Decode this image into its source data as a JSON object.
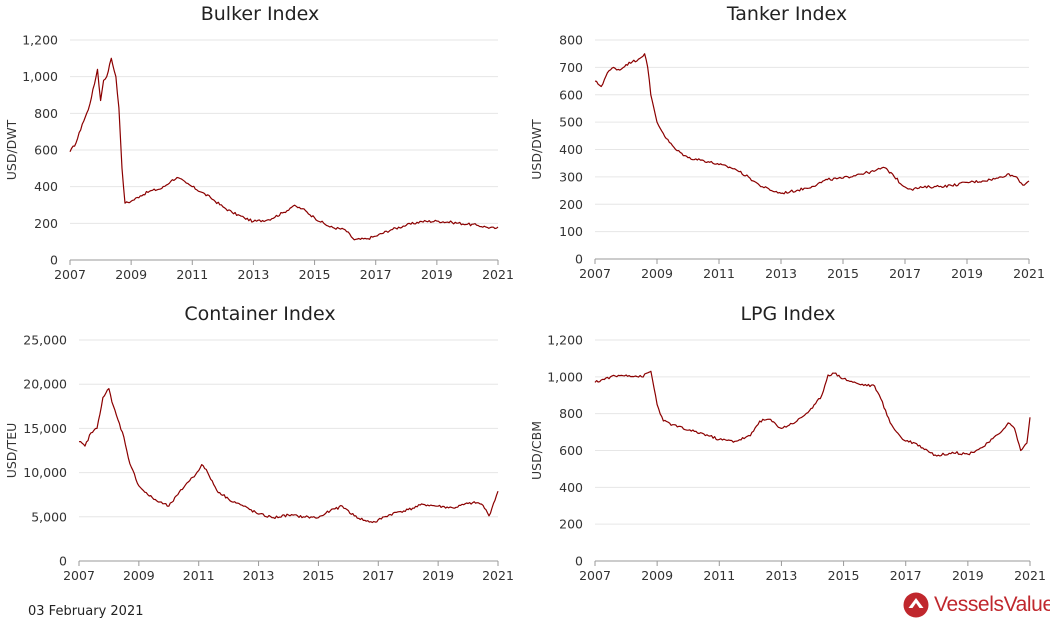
{
  "footer": {
    "date": "03 February 2021",
    "brand": "VesselsValue",
    "brand_logo": "vesselsvalue-logo-icon",
    "brand_color": "#c0272d"
  },
  "series_color": "#8b0000",
  "chart_data": [
    {
      "type": "line",
      "title": "Bulker Index",
      "ylabel": "USD/DWT",
      "xlabel": "",
      "xlim": [
        2007,
        2021
      ],
      "ylim": [
        0,
        1200
      ],
      "xticks": [
        2007,
        2009,
        2011,
        2013,
        2015,
        2017,
        2019,
        2021
      ],
      "yticks": [
        0,
        200,
        400,
        600,
        800,
        1000,
        1200
      ],
      "ytick_labels": [
        "0",
        "200",
        "400",
        "600",
        "800",
        "1,000",
        "1,200"
      ],
      "grid": true,
      "x": [
        2007.0,
        2007.2,
        2007.4,
        2007.6,
        2007.8,
        2007.9,
        2008.0,
        2008.1,
        2008.2,
        2008.35,
        2008.5,
        2008.6,
        2008.7,
        2008.8,
        2009.0,
        2009.3,
        2009.6,
        2010.0,
        2010.3,
        2010.5,
        2010.8,
        2011.0,
        2011.3,
        2011.6,
        2012.0,
        2012.3,
        2012.7,
        2013.0,
        2013.5,
        2014.0,
        2014.3,
        2014.6,
        2015.0,
        2015.5,
        2016.0,
        2016.3,
        2016.7,
        2017.0,
        2017.5,
        2018.0,
        2018.5,
        2019.0,
        2019.5,
        2020.0,
        2020.3,
        2020.6,
        2020.9,
        2021.0
      ],
      "y": [
        590,
        640,
        740,
        820,
        960,
        1040,
        870,
        980,
        1000,
        1100,
        1000,
        830,
        500,
        310,
        320,
        350,
        375,
        390,
        430,
        450,
        420,
        400,
        370,
        340,
        290,
        260,
        230,
        210,
        220,
        260,
        295,
        280,
        230,
        180,
        165,
        110,
        115,
        130,
        165,
        190,
        210,
        212,
        205,
        195,
        190,
        180,
        172,
        180
      ]
    },
    {
      "type": "line",
      "title": "Tanker Index",
      "ylabel": "USD/DWT",
      "xlabel": "",
      "xlim": [
        2007,
        2021
      ],
      "ylim": [
        0,
        800
      ],
      "xticks": [
        2007,
        2009,
        2011,
        2013,
        2015,
        2017,
        2019,
        2021
      ],
      "yticks": [
        0,
        100,
        200,
        300,
        400,
        500,
        600,
        700,
        800
      ],
      "ytick_labels": [
        "0",
        "100",
        "200",
        "300",
        "400",
        "500",
        "600",
        "700",
        "800"
      ],
      "grid": true,
      "x": [
        2007.0,
        2007.2,
        2007.4,
        2007.6,
        2007.8,
        2008.0,
        2008.2,
        2008.4,
        2008.6,
        2008.7,
        2008.8,
        2009.0,
        2009.3,
        2009.6,
        2010.0,
        2010.5,
        2011.0,
        2011.5,
        2012.0,
        2012.3,
        2012.7,
        2013.0,
        2013.5,
        2014.0,
        2014.5,
        2015.0,
        2015.5,
        2016.0,
        2016.3,
        2016.6,
        2016.9,
        2017.2,
        2017.6,
        2018.0,
        2018.5,
        2019.0,
        2019.5,
        2020.0,
        2020.3,
        2020.6,
        2020.8,
        2021.0
      ],
      "y": [
        650,
        630,
        680,
        700,
        690,
        710,
        720,
        730,
        750,
        700,
        600,
        500,
        440,
        400,
        370,
        360,
        345,
        330,
        295,
        270,
        250,
        240,
        250,
        265,
        290,
        295,
        310,
        320,
        335,
        310,
        270,
        255,
        262,
        265,
        268,
        280,
        285,
        295,
        310,
        300,
        270,
        285
      ]
    },
    {
      "type": "line",
      "title": "Container Index",
      "ylabel": "USD/TEU",
      "xlabel": "",
      "xlim": [
        2007,
        2021
      ],
      "ylim": [
        0,
        25000
      ],
      "xticks": [
        2007,
        2009,
        2011,
        2013,
        2015,
        2017,
        2019,
        2021
      ],
      "yticks": [
        0,
        5000,
        10000,
        15000,
        20000,
        25000
      ],
      "ytick_labels": [
        "0",
        "5,000",
        "10,000",
        "15,000",
        "20,000",
        "25,000"
      ],
      "grid": true,
      "x": [
        2007.0,
        2007.2,
        2007.4,
        2007.6,
        2007.8,
        2008.0,
        2008.1,
        2008.3,
        2008.5,
        2008.7,
        2009.0,
        2009.3,
        2009.6,
        2010.0,
        2010.3,
        2010.6,
        2010.9,
        2011.1,
        2011.3,
        2011.6,
        2012.0,
        2012.5,
        2013.0,
        2013.5,
        2014.0,
        2014.5,
        2015.0,
        2015.4,
        2015.8,
        2016.2,
        2016.6,
        2016.9,
        2017.2,
        2017.6,
        2018.0,
        2018.5,
        2019.0,
        2019.5,
        2020.0,
        2020.3,
        2020.5,
        2020.7,
        2021.0
      ],
      "y": [
        13500,
        13000,
        14500,
        15000,
        18500,
        19500,
        18000,
        16000,
        14000,
        11000,
        8500,
        7500,
        6800,
        6200,
        7500,
        8800,
        9800,
        10900,
        10000,
        8000,
        7000,
        6200,
        5300,
        4900,
        5200,
        5000,
        4900,
        5700,
        6200,
        5100,
        4500,
        4400,
        5000,
        5500,
        5800,
        6400,
        6200,
        6000,
        6500,
        6600,
        6300,
        5100,
        7900
      ]
    },
    {
      "type": "line",
      "title": "LPG Index",
      "ylabel": "USD/CBM",
      "xlabel": "",
      "xlim": [
        2007,
        2021
      ],
      "ylim": [
        0,
        1200
      ],
      "xticks": [
        2007,
        2009,
        2011,
        2013,
        2015,
        2017,
        2019,
        2021
      ],
      "yticks": [
        0,
        200,
        400,
        600,
        800,
        1000,
        1200
      ],
      "ytick_labels": [
        "0",
        "200",
        "400",
        "600",
        "800",
        "1,000",
        "1,200"
      ],
      "grid": true,
      "x": [
        2007.0,
        2007.5,
        2008.0,
        2008.5,
        2008.8,
        2009.0,
        2009.2,
        2009.5,
        2010.0,
        2010.5,
        2011.0,
        2011.5,
        2012.0,
        2012.3,
        2012.6,
        2013.0,
        2013.5,
        2014.0,
        2014.3,
        2014.5,
        2014.7,
        2015.0,
        2015.5,
        2016.0,
        2016.2,
        2016.5,
        2016.9,
        2017.3,
        2017.7,
        2018.0,
        2018.5,
        2019.0,
        2019.5,
        2020.0,
        2020.3,
        2020.5,
        2020.7,
        2020.9,
        2021.0
      ],
      "y": [
        970,
        1000,
        1010,
        1000,
        1030,
        850,
        760,
        740,
        710,
        690,
        660,
        650,
        680,
        760,
        770,
        720,
        760,
        830,
        900,
        1010,
        1020,
        990,
        960,
        950,
        880,
        750,
        660,
        640,
        600,
        570,
        590,
        580,
        620,
        690,
        750,
        720,
        600,
        640,
        780
      ]
    }
  ]
}
